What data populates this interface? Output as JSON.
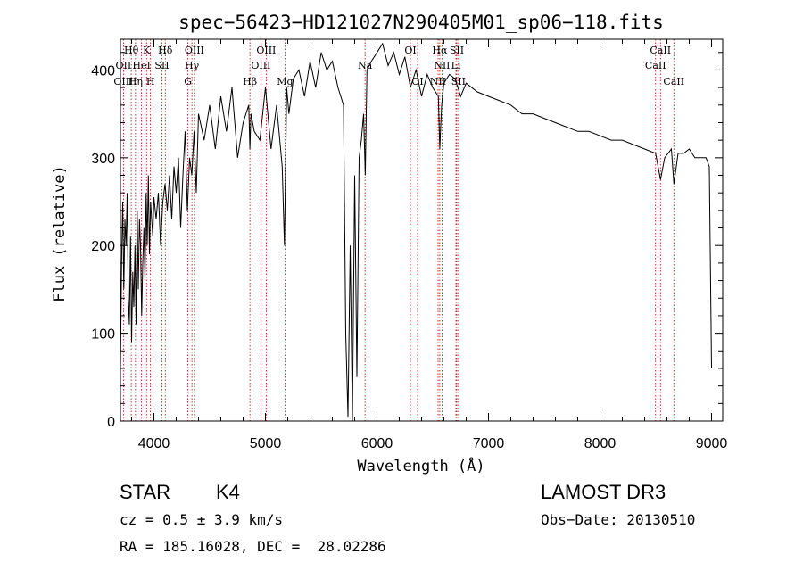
{
  "chart_data": {
    "type": "line",
    "title": "spec−56423−HD121027N290405M01_sp06−118.fits",
    "xlabel": "Wavelength (Å)",
    "ylabel": "Flux (relative)",
    "xlim": [
      3700,
      9100
    ],
    "ylim": [
      0,
      435
    ],
    "xticks": [
      4000,
      5000,
      6000,
      7000,
      8000,
      9000
    ],
    "yticks": [
      0,
      100,
      200,
      300,
      400
    ],
    "grid": false,
    "series": [
      {
        "x": [
          3700,
          3710,
          3720,
          3730,
          3740,
          3750,
          3760,
          3770,
          3780,
          3790,
          3800,
          3810,
          3820,
          3830,
          3840,
          3850,
          3860,
          3870,
          3880,
          3890,
          3900,
          3910,
          3920,
          3930,
          3940,
          3950,
          3960,
          3970,
          3980,
          3990,
          4000,
          4020,
          4040,
          4060,
          4080,
          4100,
          4120,
          4140,
          4160,
          4180,
          4200,
          4220,
          4240,
          4260,
          4280,
          4300,
          4320,
          4340,
          4360,
          4380,
          4400,
          4450,
          4500,
          4550,
          4600,
          4650,
          4700,
          4750,
          4800,
          4850,
          4861,
          4870,
          4900,
          4950,
          5000,
          5050,
          5100,
          5150,
          5170,
          5183,
          5190,
          5210,
          5250,
          5300,
          5350,
          5400,
          5450,
          5500,
          5550,
          5600,
          5650,
          5700,
          5720,
          5740,
          5760,
          5780,
          5800,
          5820,
          5840,
          5860,
          5880,
          5895,
          5910,
          5950,
          6000,
          6050,
          6100,
          6150,
          6200,
          6250,
          6300,
          6350,
          6400,
          6450,
          6500,
          6550,
          6563,
          6580,
          6600,
          6650,
          6700,
          6750,
          6800,
          6900,
          7000,
          7100,
          7200,
          7300,
          7400,
          7500,
          7600,
          7700,
          7800,
          7900,
          8000,
          8100,
          8200,
          8300,
          8400,
          8498,
          8542,
          8580,
          8640,
          8662,
          8700,
          8750,
          8800,
          8850,
          8900,
          8950,
          8980,
          9000
        ],
        "y": [
          60,
          180,
          250,
          150,
          230,
          200,
          260,
          140,
          110,
          210,
          90,
          170,
          130,
          200,
          110,
          240,
          150,
          230,
          200,
          120,
          180,
          220,
          160,
          260,
          200,
          280,
          190,
          250,
          230,
          210,
          255,
          230,
          260,
          200,
          250,
          270,
          240,
          280,
          230,
          290,
          260,
          300,
          220,
          280,
          330,
          240,
          300,
          280,
          330,
          260,
          350,
          320,
          360,
          310,
          370,
          330,
          380,
          300,
          340,
          360,
          310,
          350,
          330,
          320,
          380,
          310,
          360,
          290,
          200,
          310,
          380,
          350,
          390,
          400,
          370,
          410,
          380,
          420,
          400,
          410,
          380,
          360,
          100,
          5,
          200,
          0,
          280,
          50,
          300,
          320,
          350,
          280,
          400,
          410,
          420,
          430,
          405,
          420,
          395,
          415,
          380,
          400,
          370,
          395,
          380,
          370,
          310,
          360,
          385,
          395,
          390,
          370,
          385,
          375,
          370,
          365,
          360,
          350,
          350,
          345,
          340,
          335,
          330,
          330,
          325,
          320,
          320,
          315,
          310,
          305,
          275,
          300,
          310,
          270,
          305,
          305,
          310,
          300,
          300,
          300,
          290,
          60
        ]
      }
    ],
    "line_markers": [
      {
        "label": "Hθ",
        "x": 3797,
        "row": 0
      },
      {
        "label": "OII",
        "x": 3727,
        "row": 1
      },
      {
        "label": "OIII",
        "x": 3727,
        "row": 2
      },
      {
        "label": "Hη",
        "x": 3835,
        "row": 2
      },
      {
        "label": "HeI",
        "x": 3889,
        "row": 1
      },
      {
        "label": "K",
        "x": 3934,
        "row": 0
      },
      {
        "label": "H",
        "x": 3969,
        "row": 2
      },
      {
        "label": "SII",
        "x": 4072,
        "row": 1
      },
      {
        "label": "Hδ",
        "x": 4102,
        "row": 0
      },
      {
        "label": "OIII",
        "x": 4363,
        "row": 0
      },
      {
        "label": "Hγ",
        "x": 4341,
        "row": 1
      },
      {
        "label": "G",
        "x": 4305,
        "row": 2
      },
      {
        "label": "Hβ",
        "x": 4861,
        "row": 2
      },
      {
        "label": "OIII",
        "x": 5007,
        "row": 0
      },
      {
        "label": "OIII",
        "x": 4959,
        "row": 1
      },
      {
        "label": "Mg",
        "x": 5175,
        "row": 2
      },
      {
        "label": "Na",
        "x": 5893,
        "row": 1
      },
      {
        "label": "OI",
        "x": 6300,
        "row": 0
      },
      {
        "label": "OI",
        "x": 6364,
        "row": 2
      },
      {
        "label": "Hα",
        "x": 6563,
        "row": 0
      },
      {
        "label": "NII",
        "x": 6583,
        "row": 1
      },
      {
        "label": "NII",
        "x": 6548,
        "row": 2
      },
      {
        "label": "SII",
        "x": 6716,
        "row": 0
      },
      {
        "label": "Li",
        "x": 6708,
        "row": 1
      },
      {
        "label": "SII",
        "x": 6731,
        "row": 2
      },
      {
        "label": "CaII",
        "x": 8542,
        "row": 0
      },
      {
        "label": "CaII",
        "x": 8498,
        "row": 1
      },
      {
        "label": "CaII",
        "x": 8662,
        "row": 2
      }
    ]
  },
  "info": {
    "class_label": "STAR",
    "subclass": "K4",
    "cz": "cz = 0.5 ± 3.9 km/s",
    "radec": "RA = 185.16028, DEC =  28.02286",
    "survey": "LAMOST DR3",
    "obs_date": "Obs−Date: 20130510"
  }
}
